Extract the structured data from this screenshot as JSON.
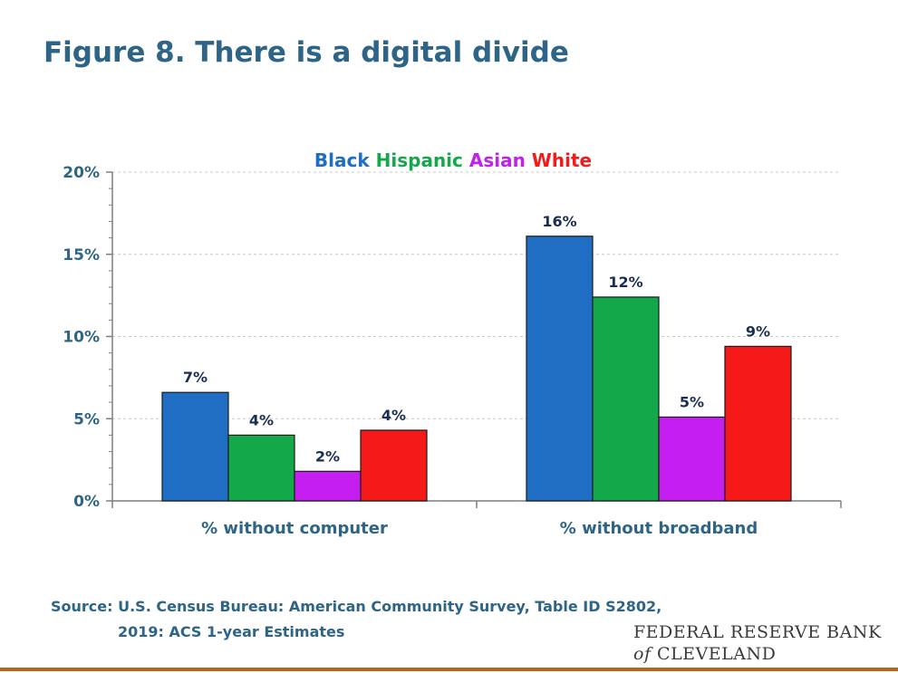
{
  "title": "Figure 8. There is a digital divide",
  "source_line1": "Source: U.S. Census Bureau: American Community Survey, Table ID S2802,",
  "source_line2": "2019: ACS 1-year Estimates",
  "logo": {
    "line1": "FEDERAL RESERVE BANK",
    "of": "of",
    "line2": "CLEVELAND"
  },
  "chart_data": {
    "type": "bar",
    "categories": [
      "% without computer",
      "% without broadband"
    ],
    "series": [
      {
        "name": "Black",
        "color": "#1f6ec4",
        "values": [
          6.6,
          16.1
        ],
        "labels": [
          "7%",
          "16%"
        ]
      },
      {
        "name": "Hispanic",
        "color": "#13a84a",
        "values": [
          4.0,
          12.4
        ],
        "labels": [
          "4%",
          "12%"
        ]
      },
      {
        "name": "Asian",
        "color": "#c41ef0",
        "values": [
          1.8,
          5.1
        ],
        "labels": [
          "2%",
          "5%"
        ]
      },
      {
        "name": "White",
        "color": "#f51919",
        "values": [
          4.3,
          9.4
        ],
        "labels": [
          "4%",
          "9%"
        ]
      }
    ],
    "ylim": [
      0,
      20
    ],
    "yticks": [
      0,
      5,
      10,
      15,
      20
    ],
    "ytick_labels": [
      "0%",
      "5%",
      "10%",
      "15%",
      "20%"
    ],
    "legend_position": "top-center",
    "grid": true
  }
}
